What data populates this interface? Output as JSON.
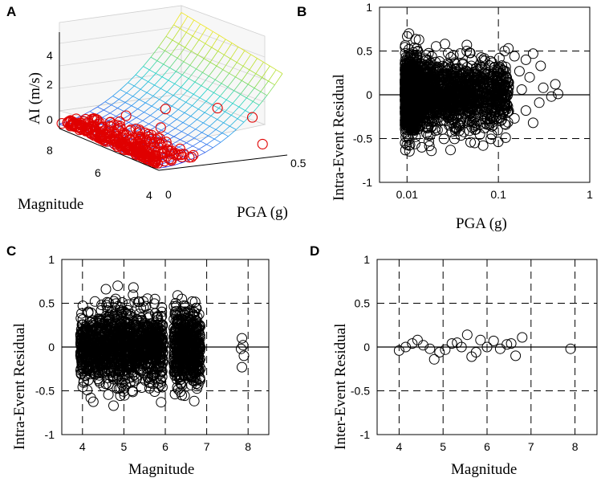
{
  "chart_data": [
    {
      "id": "A",
      "type": "surface3d",
      "panel_label": "A",
      "zlabel": "AI (m/s)",
      "xlabel": "PGA (g)",
      "ylabel": "Magnitude",
      "z_ticks": [
        "0",
        "2",
        "4"
      ],
      "mag_ticks": [
        "8",
        "6",
        "4"
      ],
      "pga_ticks": [
        "0",
        "0.5"
      ],
      "mag_range": [
        4,
        8
      ],
      "pga_range": [
        0,
        0.5
      ],
      "z_range": [
        -0.5,
        5
      ],
      "observations": [
        {
          "mag": 7.9,
          "pga": 0.0,
          "ai": -0.1
        },
        {
          "mag": 7.8,
          "pga": 0.02,
          "ai": 0.05
        },
        {
          "mag": 6.6,
          "pga": 0.13,
          "ai": 0.9
        },
        {
          "mag": 6.2,
          "pga": 0.25,
          "ai": 1.3
        },
        {
          "mag": 5.4,
          "pga": 0.38,
          "ai": 1.6
        },
        {
          "mag": 4.8,
          "pga": 0.46,
          "ai": 1.3
        },
        {
          "mag": 4.2,
          "pga": 0.44,
          "ai": 0.2
        },
        {
          "mag": 6.0,
          "pga": 0.21,
          "ai": 0.45
        }
      ]
    },
    {
      "id": "B",
      "type": "scatter",
      "panel_label": "B",
      "xlabel": "PGA (g)",
      "ylabel": "Intra-Event Residual",
      "xscale": "log",
      "xlim": [
        0.005,
        1
      ],
      "ylim": [
        -1,
        1
      ],
      "xticks": [
        0.01,
        0.1,
        1
      ],
      "xtick_labels": [
        "0.01",
        "0.1",
        "1"
      ],
      "yticks": [
        -1,
        -0.5,
        0,
        0.5,
        1
      ],
      "ytick_labels": [
        "-1",
        "-0.5",
        "0",
        "0.5",
        "1"
      ],
      "grid": "dashed",
      "cloud": {
        "n": 2400,
        "x_min": 0.0095,
        "x_max": 0.13,
        "x_mode": 0.012,
        "sd": 0.19
      },
      "points": [
        {
          "x": 0.0105,
          "y": 0.7
        },
        {
          "x": 0.0105,
          "y": 0.52
        },
        {
          "x": 0.026,
          "y": 0.58
        },
        {
          "x": 0.045,
          "y": 0.5
        },
        {
          "x": 0.15,
          "y": 0.44
        },
        {
          "x": 0.2,
          "y": 0.4
        },
        {
          "x": 0.24,
          "y": 0.47
        },
        {
          "x": 0.29,
          "y": 0.33
        },
        {
          "x": 0.17,
          "y": 0.27
        },
        {
          "x": 0.22,
          "y": 0.2
        },
        {
          "x": 0.42,
          "y": 0.12
        },
        {
          "x": 0.45,
          "y": 0.01
        },
        {
          "x": 0.38,
          "y": -0.02
        },
        {
          "x": 0.28,
          "y": -0.09
        },
        {
          "x": 0.2,
          "y": -0.18
        },
        {
          "x": 0.24,
          "y": -0.32
        },
        {
          "x": 0.15,
          "y": -0.27
        },
        {
          "x": 0.12,
          "y": -0.49
        },
        {
          "x": 0.055,
          "y": -0.55
        },
        {
          "x": 0.068,
          "y": -0.58
        },
        {
          "x": 0.0185,
          "y": -0.64
        },
        {
          "x": 0.0145,
          "y": -0.6
        },
        {
          "x": 0.0105,
          "y": -0.58
        },
        {
          "x": 0.31,
          "y": 0.08
        },
        {
          "x": 0.18,
          "y": 0.06
        },
        {
          "x": 0.13,
          "y": 0.14
        }
      ]
    },
    {
      "id": "C",
      "type": "scatter",
      "panel_label": "C",
      "xlabel": "Magnitude",
      "ylabel": "Intra-Event Residual",
      "xlim": [
        3.5,
        8.5
      ],
      "ylim": [
        -1,
        1
      ],
      "xticks": [
        4,
        5,
        6,
        7,
        8
      ],
      "xtick_labels": [
        "4",
        "5",
        "6",
        "7",
        "8"
      ],
      "yticks": [
        -1,
        -0.5,
        0,
        0.5,
        1
      ],
      "ytick_labels": [
        "-1",
        "-0.5",
        "0",
        "0.5",
        "1"
      ],
      "grid": "dashed",
      "clusters": [
        {
          "x_min": 3.95,
          "x_max": 5.95,
          "n": 1250,
          "sd": 0.2
        },
        {
          "x_min": 6.2,
          "x_max": 6.85,
          "n": 550,
          "sd": 0.21
        }
      ],
      "points": [
        {
          "x": 4.85,
          "y": 0.7
        },
        {
          "x": 4.8,
          "y": 0.55
        },
        {
          "x": 4.3,
          "y": 0.52
        },
        {
          "x": 6.4,
          "y": 0.55
        },
        {
          "x": 6.25,
          "y": 0.5
        },
        {
          "x": 4.75,
          "y": -0.67
        },
        {
          "x": 5.9,
          "y": -0.63
        },
        {
          "x": 4.2,
          "y": -0.58
        },
        {
          "x": 6.4,
          "y": -0.55
        },
        {
          "x": 5.2,
          "y": -0.5
        },
        {
          "x": 7.85,
          "y": 0.1
        },
        {
          "x": 7.88,
          "y": 0.02
        },
        {
          "x": 7.83,
          "y": -0.02
        },
        {
          "x": 7.9,
          "y": -0.1
        },
        {
          "x": 7.85,
          "y": -0.23
        }
      ]
    },
    {
      "id": "D",
      "type": "scatter",
      "panel_label": "D",
      "xlabel": "Magnitude",
      "ylabel": "Inter-Event Residual",
      "xlim": [
        3.5,
        8.5
      ],
      "ylim": [
        -1,
        1
      ],
      "xticks": [
        4,
        5,
        6,
        7,
        8
      ],
      "xtick_labels": [
        "4",
        "5",
        "6",
        "7",
        "8"
      ],
      "yticks": [
        -1,
        -0.5,
        0,
        0.5,
        1
      ],
      "ytick_labels": [
        "-1",
        "-0.5",
        "0",
        "0.5",
        "1"
      ],
      "grid": "dashed",
      "points": [
        {
          "x": 4.0,
          "y": -0.04
        },
        {
          "x": 4.15,
          "y": 0.0
        },
        {
          "x": 4.3,
          "y": 0.04
        },
        {
          "x": 4.42,
          "y": 0.08
        },
        {
          "x": 4.55,
          "y": 0.02
        },
        {
          "x": 4.7,
          "y": -0.02
        },
        {
          "x": 4.8,
          "y": -0.14
        },
        {
          "x": 4.92,
          "y": -0.06
        },
        {
          "x": 5.05,
          "y": -0.03
        },
        {
          "x": 5.2,
          "y": 0.04
        },
        {
          "x": 5.32,
          "y": 0.05
        },
        {
          "x": 5.42,
          "y": 0.0
        },
        {
          "x": 5.55,
          "y": 0.14
        },
        {
          "x": 5.65,
          "y": -0.11
        },
        {
          "x": 5.75,
          "y": -0.06
        },
        {
          "x": 5.85,
          "y": 0.08
        },
        {
          "x": 6.0,
          "y": 0.0
        },
        {
          "x": 6.15,
          "y": 0.07
        },
        {
          "x": 6.3,
          "y": -0.02
        },
        {
          "x": 6.45,
          "y": 0.03
        },
        {
          "x": 6.55,
          "y": 0.04
        },
        {
          "x": 6.65,
          "y": -0.1
        },
        {
          "x": 6.8,
          "y": 0.11
        },
        {
          "x": 7.9,
          "y": -0.02
        }
      ]
    }
  ]
}
